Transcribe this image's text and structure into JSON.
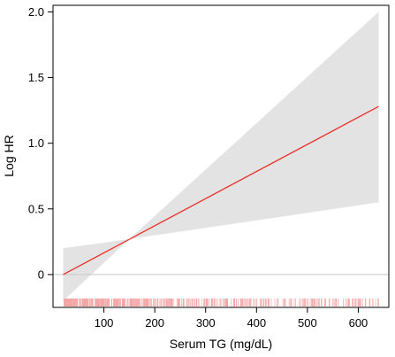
{
  "chart_data": {
    "type": "line",
    "xlabel": "Serum TG (mg/dL)",
    "ylabel": "Log HR",
    "xlim": [
      0,
      660
    ],
    "ylim": [
      -0.25,
      2.05
    ],
    "x_ticks": [
      {
        "value": 100,
        "label": "100"
      },
      {
        "value": 200,
        "label": "200"
      },
      {
        "value": 300,
        "label": "300"
      },
      {
        "value": 400,
        "label": "400"
      },
      {
        "value": 500,
        "label": "500"
      },
      {
        "value": 600,
        "label": "600"
      }
    ],
    "y_ticks": [
      {
        "value": 0,
        "label": "0"
      },
      {
        "value": 0.5,
        "label": "0.5"
      },
      {
        "value": 1.0,
        "label": "1.0"
      },
      {
        "value": 1.5,
        "label": "1.5"
      },
      {
        "value": 2.0,
        "label": "2.0"
      }
    ],
    "reference_line_y": 0,
    "fit_line": {
      "x": [
        20,
        640
      ],
      "y": [
        0.0,
        1.28
      ]
    },
    "confidence_band": {
      "x": [
        20,
        150,
        640
      ],
      "lower": [
        -0.2,
        0.27,
        0.55
      ],
      "upper": [
        0.2,
        0.27,
        2.0
      ]
    },
    "rug_range": [
      22,
      640
    ],
    "colors": {
      "line": "#e8302a",
      "band": "#e3e3e3",
      "rug": "#f4a7a7",
      "reference": "#c8c8c8",
      "axis": "#000000"
    }
  }
}
